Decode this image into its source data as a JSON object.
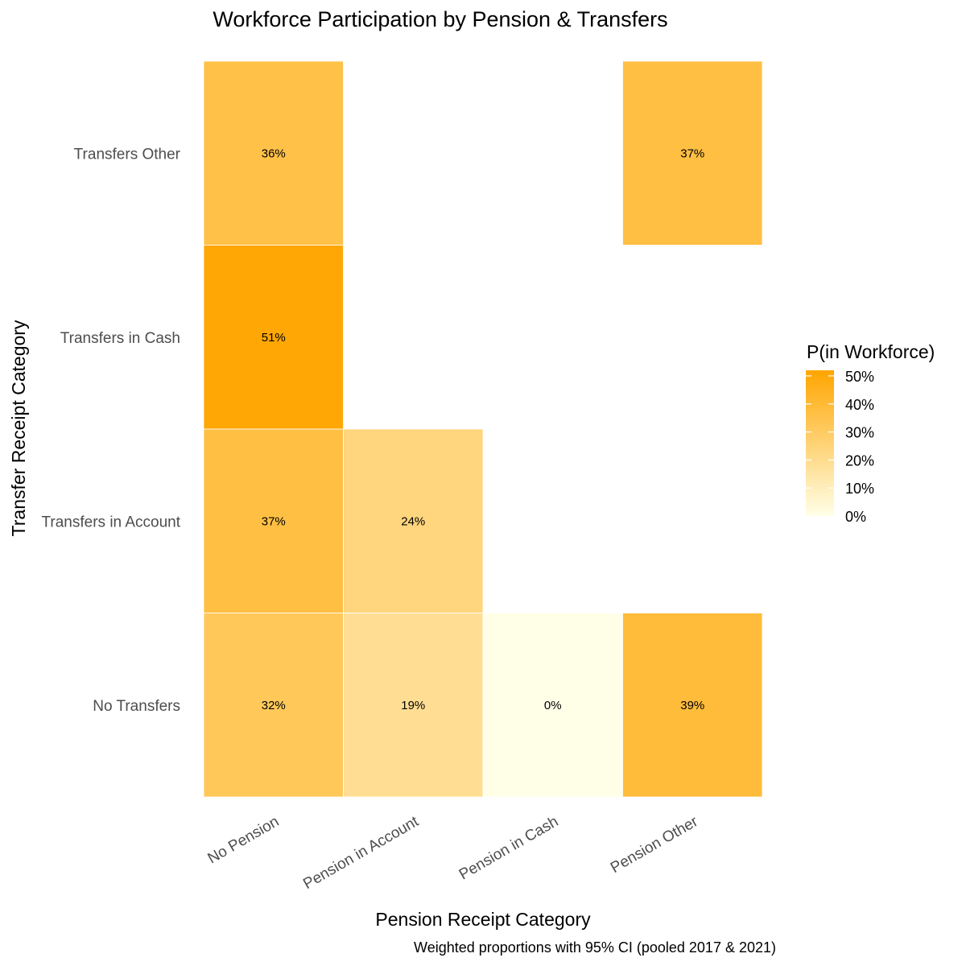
{
  "chart_data": {
    "type": "heatmap",
    "title": "Workforce Participation by Pension & Transfers",
    "xlabel": "Pension Receipt Category",
    "ylabel": "Transfer Receipt Category",
    "caption": "Weighted proportions with 95% CI (pooled 2017 & 2021)",
    "x_categories": [
      "No Pension",
      "Pension in Account",
      "Pension in Cash",
      "Pension Other"
    ],
    "y_categories": [
      "No Transfers",
      "Transfers in Account",
      "Transfers in Cash",
      "Transfers Other"
    ],
    "cells": [
      {
        "x": "No Pension",
        "y": "Transfers Other",
        "value": 36,
        "label": "36%"
      },
      {
        "x": "Pension Other",
        "y": "Transfers Other",
        "value": 37,
        "label": "37%"
      },
      {
        "x": "No Pension",
        "y": "Transfers in Cash",
        "value": 51,
        "label": "51%"
      },
      {
        "x": "No Pension",
        "y": "Transfers in Account",
        "value": 37,
        "label": "37%"
      },
      {
        "x": "Pension in Account",
        "y": "Transfers in Account",
        "value": 24,
        "label": "24%"
      },
      {
        "x": "No Pension",
        "y": "No Transfers",
        "value": 32,
        "label": "32%"
      },
      {
        "x": "Pension in Account",
        "y": "No Transfers",
        "value": 19,
        "label": "19%"
      },
      {
        "x": "Pension in Cash",
        "y": "No Transfers",
        "value": 0,
        "label": "0%"
      },
      {
        "x": "Pension Other",
        "y": "No Transfers",
        "value": 39,
        "label": "39%"
      }
    ],
    "legend": {
      "title": "P(in Workforce)",
      "breaks": [
        "0%",
        "10%",
        "20%",
        "30%",
        "40%",
        "50%"
      ],
      "break_values": [
        0,
        10,
        20,
        30,
        40,
        50
      ],
      "range": [
        0,
        52
      ],
      "low_color": "#ffffe8",
      "high_color": "#ffa500",
      "placement": "right"
    },
    "grid": false
  }
}
